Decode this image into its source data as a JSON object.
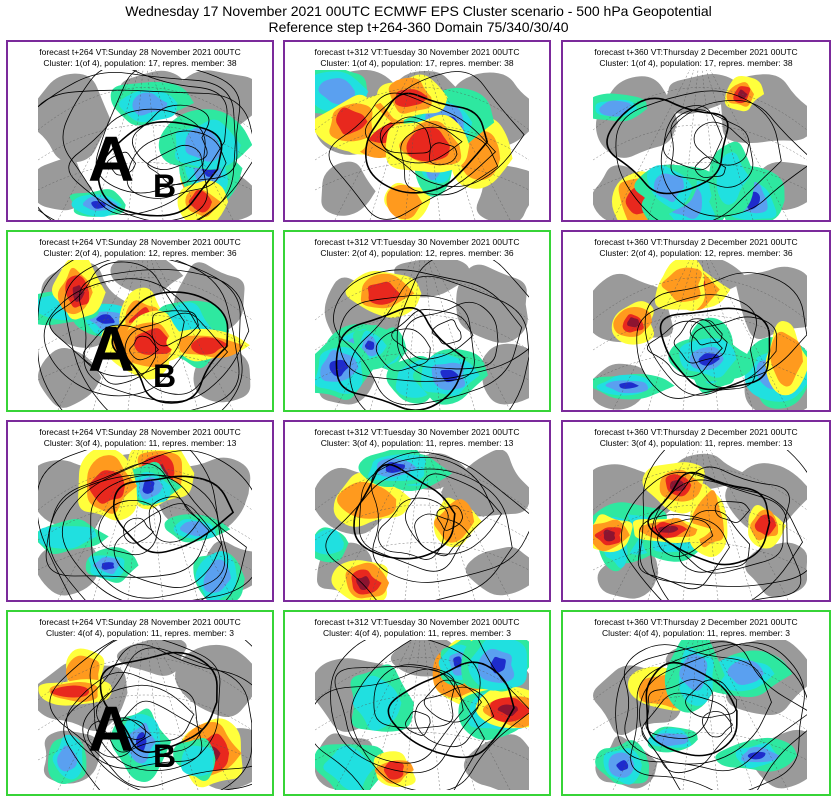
{
  "header": {
    "title": "Wednesday 17 November 2021 00UTC ECMWF EPS Cluster scenario - 500 hPa Geopotential",
    "subtitle": "Reference step t+264-360 Domain 75/340/30/40"
  },
  "colors": {
    "purple_border": "#7b2a9b",
    "green_border": "#37d437",
    "land": "#9a9a9a",
    "pos_anomaly": [
      "#ffff3c",
      "#ff9a1e",
      "#e8281e",
      "#8c1430"
    ],
    "neg_anomaly": [
      "#2ee8a0",
      "#20e0e0",
      "#5aa0f0",
      "#1e2ccc"
    ]
  },
  "annotation": {
    "a": "A",
    "b": "B"
  },
  "rows": [
    {
      "cluster_label": "Cluster: 1(of 4), population: 17, repres. member: 38",
      "border_color": "purple",
      "panels": [
        {
          "forecast": "forecast t+264 VT:Sunday 28 November 2021 00UTC",
          "border": "purple",
          "ab": true
        },
        {
          "forecast": "forecast t+312 VT:Tuesday 30 November 2021 00UTC",
          "border": "purple",
          "ab": false
        },
        {
          "forecast": "forecast t+360 VT:Thursday 2 December 2021 00UTC",
          "border": "purple",
          "ab": false
        }
      ]
    },
    {
      "cluster_label": "Cluster: 2(of 4), population: 12, repres. member: 36",
      "panels": [
        {
          "forecast": "forecast t+264 VT:Sunday 28 November 2021 00UTC",
          "border": "green",
          "ab": true
        },
        {
          "forecast": "forecast t+312 VT:Tuesday 30 November 2021 00UTC",
          "border": "green",
          "ab": false
        },
        {
          "forecast": "forecast t+360 VT:Thursday 2 December 2021 00UTC",
          "border": "purple",
          "ab": false
        }
      ]
    },
    {
      "cluster_label": "Cluster: 3(of 4), population: 11, repres. member: 13",
      "panels": [
        {
          "forecast": "forecast t+264 VT:Sunday 28 November 2021 00UTC",
          "border": "purple",
          "ab": false
        },
        {
          "forecast": "forecast t+312 VT:Tuesday 30 November 2021 00UTC",
          "border": "purple",
          "ab": false
        },
        {
          "forecast": "forecast t+360 VT:Thursday 2 December 2021 00UTC",
          "border": "purple",
          "ab": false
        }
      ]
    },
    {
      "cluster_label": "Cluster: 4(of 4), population: 11, repres. member: 3",
      "panels": [
        {
          "forecast": "forecast t+264 VT:Sunday 28 November 2021 00UTC",
          "border": "green",
          "ab": true
        },
        {
          "forecast": "forecast t+312 VT:Tuesday 30 November 2021 00UTC",
          "border": "green",
          "ab": false
        },
        {
          "forecast": "forecast t+360 VT:Thursday 2 December 2021 00UTC",
          "border": "green",
          "ab": false
        }
      ]
    }
  ]
}
